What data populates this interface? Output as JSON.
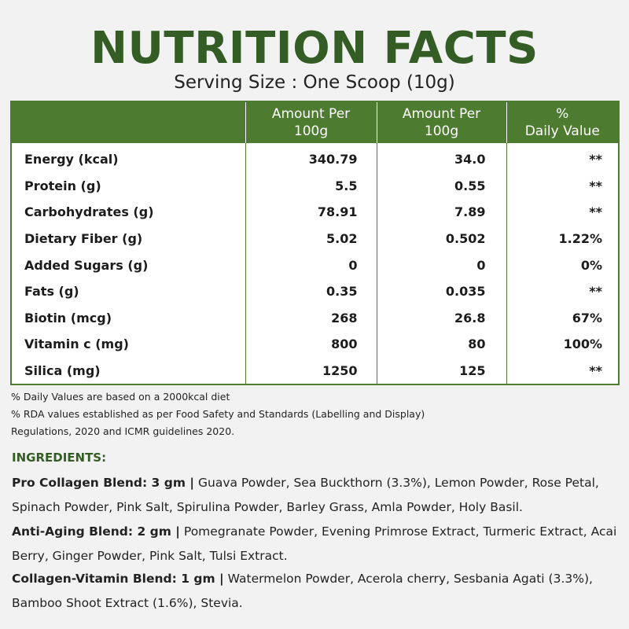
{
  "title": "NUTRITION FACTS",
  "serving": "Serving Size : One Scoop (10g)",
  "table": {
    "headers": [
      "",
      "Amount Per\n100g",
      "Amount Per\n100g",
      "%\nDaily Value"
    ],
    "rows": [
      {
        "name": "Energy (kcal)",
        "per100": "340.79",
        "perServing": "34.0",
        "dv": "**"
      },
      {
        "name": "Protein (g)",
        "per100": "5.5",
        "perServing": "0.55",
        "dv": "**"
      },
      {
        "name": "Carbohydrates (g)",
        "per100": "78.91",
        "perServing": "7.89",
        "dv": "**"
      },
      {
        "name": "Dietary Fiber (g)",
        "per100": "5.02",
        "perServing": "0.502",
        "dv": "1.22%"
      },
      {
        "name": "Added Sugars (g)",
        "per100": "0",
        "perServing": "0",
        "dv": "0%"
      },
      {
        "name": "Fats (g)",
        "per100": "0.35",
        "perServing": "0.035",
        "dv": "**"
      },
      {
        "name": "Biotin (mcg)",
        "per100": "268",
        "perServing": "26.8",
        "dv": "67%"
      },
      {
        "name": "Vitamin c (mg)",
        "per100": "800",
        "perServing": "80",
        "dv": "100%"
      },
      {
        "name": "Silica (mg)",
        "per100": "1250",
        "perServing": "125",
        "dv": "**"
      }
    ]
  },
  "notes": [
    "% Daily Values are based on a 2000kcal diet",
    "% RDA values established as per Food Safety and Standards (Labelling and Display) Regulations, 2020 and ICMR guidelines 2020."
  ],
  "ingredients": {
    "title": "INGREDIENTS:",
    "blends": [
      {
        "name": "Pro Collagen Blend: 3 gm |",
        "items": "Guava Powder, Sea Buckthorn (3.3%), Lemon Powder, Rose Petal, Spinach Powder, Pink Salt, Spirulina Powder, Barley Grass, Amla Powder, Holy Basil."
      },
      {
        "name": "Anti-Aging Blend: 2 gm |",
        "items": "Pomegranate Powder, Evening Primrose Extract, Turmeric Extract, Acai Berry, Ginger Powder, Pink Salt, Tulsi Extract."
      },
      {
        "name": "Collagen-Vitamin Blend: 1 gm |",
        "items": "Watermelon Powder, Acerola cherry, Sesbania Agati (3.3%), Bamboo Shoot Extract (1.6%), Stevia."
      }
    ]
  },
  "colors": {
    "brand_green": "#335d25",
    "header_green": "#4d7b30"
  }
}
